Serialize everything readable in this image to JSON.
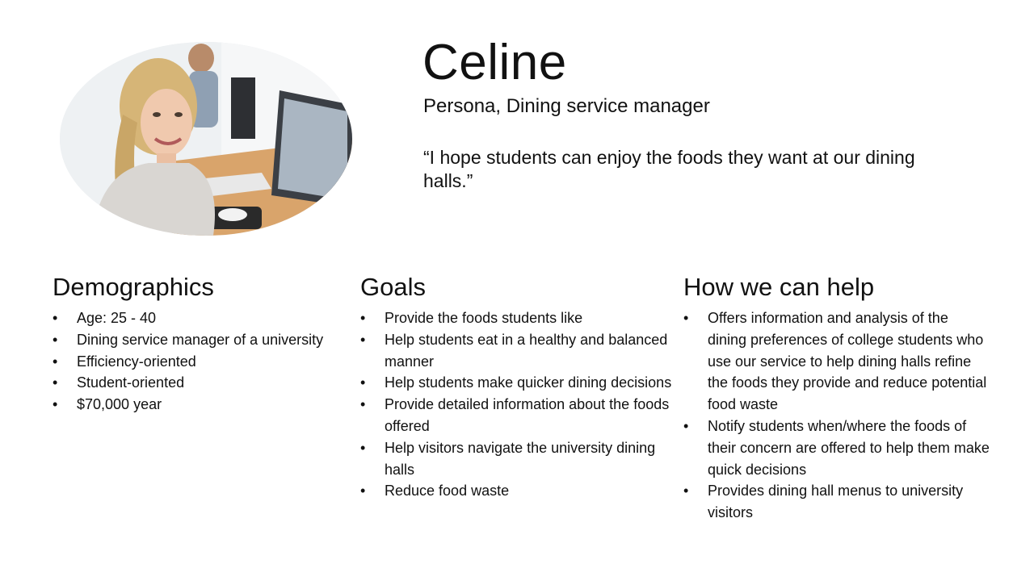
{
  "persona": {
    "name": "Celine",
    "subtitle": "Persona, Dining service manager",
    "quote": "“I hope students can enjoy the foods they want at our dining halls.”"
  },
  "sections": {
    "demographics": {
      "title": "Demographics",
      "items": [
        "Age: 25 - 40",
        "Dining service manager of a university",
        "Efficiency-oriented",
        "Student-oriented",
        "$70,000 year"
      ]
    },
    "goals": {
      "title": "Goals",
      "items": [
        "Provide the foods students like",
        "Help students eat in a healthy and balanced manner",
        "Help students make quicker dining decisions",
        "Provide detailed information about the foods offered",
        "Help visitors navigate the university dining halls",
        "Reduce food waste"
      ]
    },
    "help": {
      "title": "How we can help",
      "items": [
        "Offers information and analysis of the dining preferences of college students who use our service to help dining halls refine the foods they provide and reduce potential food waste",
        "Notify students when/where the foods of their concern are offered to help them make quick decisions",
        "Provides dining hall menus to university visitors"
      ]
    }
  },
  "bullet_char": "•"
}
